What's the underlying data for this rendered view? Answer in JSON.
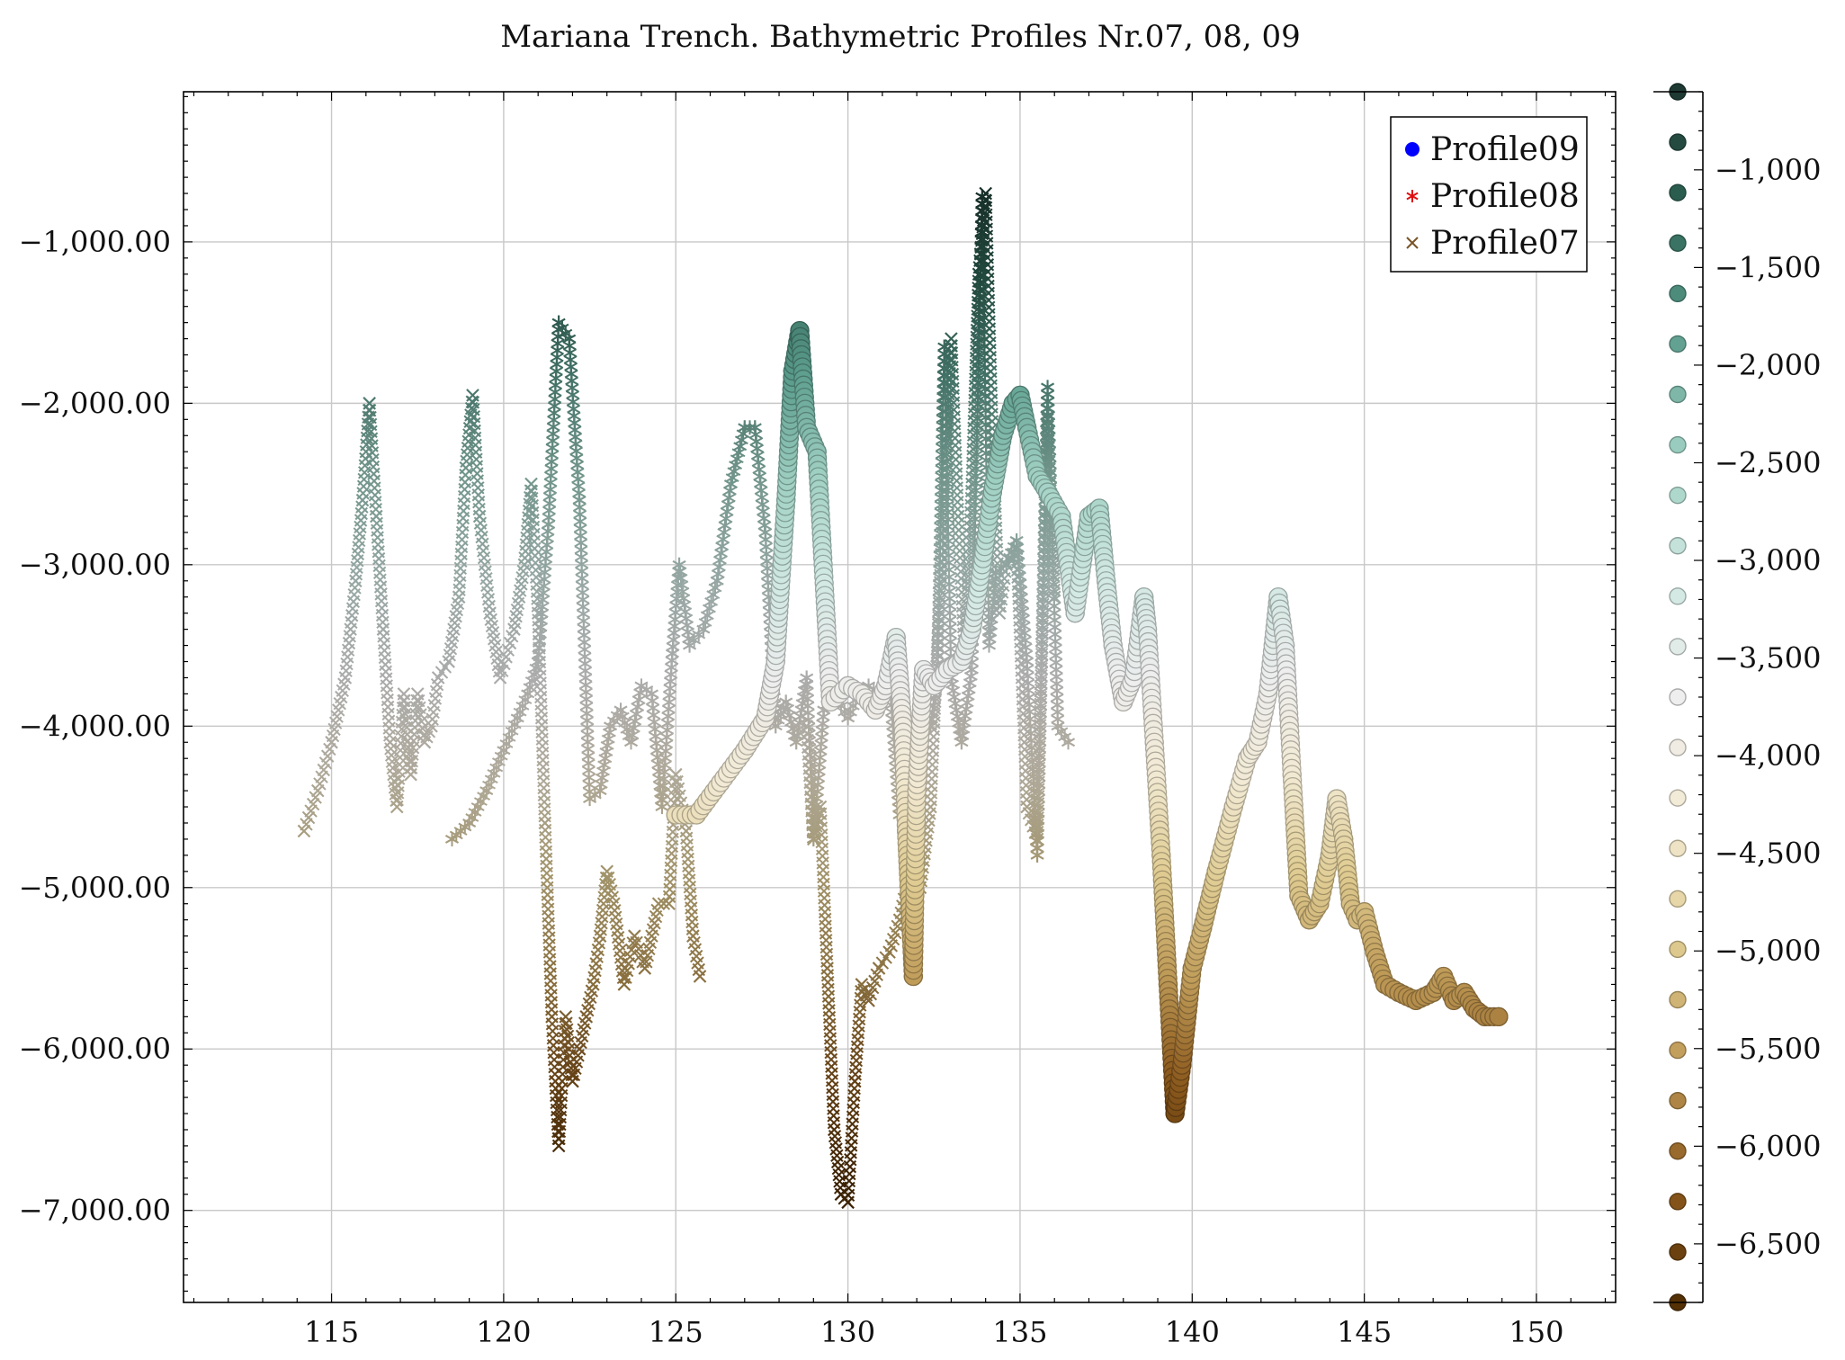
{
  "chart_data": {
    "type": "scatter",
    "title": "Mariana Trench. Bathymetric Profiles Nr.07, 08, 09",
    "xlabel": "",
    "ylabel": "",
    "xlim": [
      110.7,
      152.3
    ],
    "ylim": [
      -7570,
      -70
    ],
    "x_ticks": [
      115,
      120,
      125,
      130,
      135,
      140,
      145,
      150
    ],
    "y_ticks": [
      -1000,
      -2000,
      -3000,
      -4000,
      -5000,
      -6000,
      -7000
    ],
    "y_tick_labels": [
      "−1,000.00",
      "−2,000.00",
      "−3,000.00",
      "−4,000.00",
      "−5,000.00",
      "−6,000.00",
      "−7,000.00"
    ],
    "grid": true,
    "legend": {
      "placement": "top-right",
      "entries": [
        {
          "label": "Profile09",
          "marker": "circle",
          "color": "#0000ff"
        },
        {
          "label": "Profile08",
          "marker": "asterisk",
          "color": "#e01010"
        },
        {
          "label": "Profile07",
          "marker": "cross",
          "color": "#7a5528"
        }
      ]
    },
    "colorbar": {
      "range": [
        -6800,
        -600
      ],
      "ticks": [
        -1000,
        -1500,
        -2000,
        -2500,
        -3000,
        -3500,
        -4000,
        -4500,
        -5000,
        -5500,
        -6000,
        -6500
      ],
      "tick_labels": [
        "−1,000",
        "−1,500",
        "−2,000",
        "−2,500",
        "−3,000",
        "−3,500",
        "−4,000",
        "−4,500",
        "−5,000",
        "−5,500",
        "−6,000",
        "−6,500"
      ],
      "colormap": [
        "#543005",
        "#8c5a1e",
        "#bf9b58",
        "#e0cc92",
        "#f2ead4",
        "#eeeeee",
        "#d0e8e2",
        "#9fd0c2",
        "#5d9e8e",
        "#2e6455",
        "#1e3a33"
      ]
    },
    "series": [
      {
        "name": "Profile09",
        "marker": "circle",
        "x": [
          125.0,
          125.6,
          126.3,
          127.0,
          127.6,
          127.9,
          128.2,
          128.4,
          128.6,
          128.8,
          129.1,
          129.5,
          130.0,
          130.4,
          130.8,
          131.1,
          131.4,
          131.6,
          131.7,
          131.8,
          131.9,
          132.0,
          132.2,
          132.5,
          132.9,
          133.3,
          133.6,
          133.9,
          134.2,
          134.5,
          134.8,
          135.0,
          135.2,
          135.5,
          135.8,
          136.2,
          136.6,
          137.0,
          137.3,
          137.5,
          137.7,
          138.0,
          138.3,
          138.6,
          138.7,
          138.9,
          139.1,
          139.3,
          139.5,
          139.7,
          140.0,
          140.3,
          140.7,
          141.2,
          141.6,
          141.9,
          142.2,
          142.5,
          142.7,
          142.9,
          143.1,
          143.4,
          143.7,
          144.0,
          144.2,
          144.4,
          144.6,
          144.8,
          145.0,
          145.3,
          145.6,
          146.0,
          146.5,
          147.0,
          147.3,
          147.6,
          147.9,
          148.2,
          148.5,
          148.9
        ],
        "y": [
          -4550,
          -4550,
          -4350,
          -4150,
          -3950,
          -3600,
          -2600,
          -1800,
          -1550,
          -2150,
          -2300,
          -3850,
          -3750,
          -3800,
          -3900,
          -3750,
          -3450,
          -4000,
          -4650,
          -5100,
          -5550,
          -4400,
          -3650,
          -3750,
          -3650,
          -3600,
          -3400,
          -3000,
          -2550,
          -2200,
          -2000,
          -1950,
          -2150,
          -2450,
          -2550,
          -2700,
          -3300,
          -2700,
          -2650,
          -3100,
          -3500,
          -3850,
          -3700,
          -3200,
          -3400,
          -4100,
          -4800,
          -5600,
          -6400,
          -6100,
          -5500,
          -5250,
          -4900,
          -4500,
          -4200,
          -4100,
          -3800,
          -3200,
          -3500,
          -4300,
          -5050,
          -5200,
          -5100,
          -4800,
          -4450,
          -4700,
          -5100,
          -5200,
          -5150,
          -5400,
          -5600,
          -5650,
          -5700,
          -5650,
          -5550,
          -5700,
          -5650,
          -5750,
          -5800,
          -5800
        ]
      },
      {
        "name": "Profile08",
        "marker": "asterisk",
        "x": [
          118.5,
          119.0,
          119.5,
          120.0,
          120.4,
          120.7,
          121.0,
          121.3,
          121.6,
          121.9,
          122.2,
          122.5,
          122.8,
          123.1,
          123.4,
          123.7,
          124.0,
          124.3,
          124.6,
          124.9,
          125.1,
          125.4,
          125.8,
          126.2,
          126.6,
          127.0,
          127.3,
          127.6,
          127.9,
          128.2,
          128.5,
          128.8,
          129.0,
          129.3,
          129.6,
          130.0,
          130.3,
          130.6,
          130.9,
          131.2,
          131.5,
          131.8,
          132.1,
          132.4,
          132.6,
          132.8,
          133.0,
          133.3,
          133.6,
          133.9,
          134.1,
          134.3,
          134.6,
          134.9,
          135.2,
          135.5,
          135.8,
          136.1,
          136.4
        ],
        "y": [
          -4700,
          -4600,
          -4400,
          -4150,
          -3950,
          -3800,
          -3600,
          -2750,
          -1500,
          -1600,
          -2600,
          -4450,
          -4400,
          -4000,
          -3900,
          -4100,
          -3750,
          -3800,
          -4500,
          -3550,
          -3000,
          -3500,
          -3400,
          -3100,
          -2500,
          -2150,
          -2150,
          -2800,
          -4000,
          -3850,
          -4100,
          -3700,
          -4700,
          -3900,
          -3800,
          -3950,
          -3800,
          -3750,
          -3800,
          -3700,
          -4550,
          -4600,
          -3850,
          -4000,
          -3700,
          -1650,
          -3700,
          -4100,
          -3650,
          -720,
          -3500,
          -3050,
          -3000,
          -2850,
          -3600,
          -4800,
          -1900,
          -4000,
          -4100
        ]
      },
      {
        "name": "Profile07",
        "marker": "cross",
        "x": [
          114.2,
          114.6,
          115.0,
          115.4,
          115.7,
          115.9,
          116.1,
          116.3,
          116.5,
          116.7,
          116.9,
          117.1,
          117.3,
          117.5,
          117.7,
          117.9,
          118.1,
          118.4,
          118.7,
          118.9,
          119.1,
          119.3,
          119.6,
          119.9,
          120.3,
          120.6,
          120.8,
          121.0,
          121.2,
          121.4,
          121.6,
          121.8,
          122.0,
          122.2,
          122.4,
          122.6,
          122.8,
          123.0,
          123.2,
          123.5,
          123.8,
          124.1,
          124.5,
          124.8,
          125.0,
          125.3,
          125.5,
          125.7
        ],
        "y": [
          -4650,
          -4400,
          -4100,
          -3700,
          -3100,
          -2600,
          -2000,
          -2700,
          -3400,
          -4100,
          -4500,
          -3800,
          -4300,
          -3800,
          -4100,
          -4000,
          -3700,
          -3600,
          -3200,
          -2400,
          -1950,
          -2700,
          -3300,
          -3700,
          -3400,
          -3000,
          -2500,
          -3300,
          -4600,
          -5800,
          -6600,
          -5800,
          -6200,
          -6000,
          -5800,
          -5600,
          -5300,
          -4900,
          -5100,
          -5600,
          -5300,
          -5500,
          -5100,
          -5100,
          -4300,
          -4650,
          -5300,
          -5550
        ]
      },
      {
        "name": "Profile07",
        "marker": "cross",
        "x": [
          128.8,
          129.0,
          129.2,
          129.4,
          129.6,
          129.8,
          130.0,
          130.2,
          130.4,
          130.6,
          130.9,
          131.2,
          131.5,
          131.8,
          132.1,
          132.4,
          132.6,
          132.8,
          133.0,
          133.2,
          133.4,
          133.6,
          133.8,
          134.0,
          134.2,
          134.4,
          134.6,
          134.9,
          135.2,
          135.5,
          135.8,
          136.0
        ],
        "y": [
          -4000,
          -4700,
          -4500,
          -5500,
          -6500,
          -6900,
          -6950,
          -6200,
          -5600,
          -5700,
          -5500,
          -5400,
          -5200,
          -4900,
          -5000,
          -4500,
          -3500,
          -2500,
          -1600,
          -2700,
          -3600,
          -2500,
          -1200,
          -700,
          -2200,
          -3300,
          -3000,
          -2900,
          -4500,
          -4700,
          -2100,
          -3200
        ]
      }
    ]
  }
}
